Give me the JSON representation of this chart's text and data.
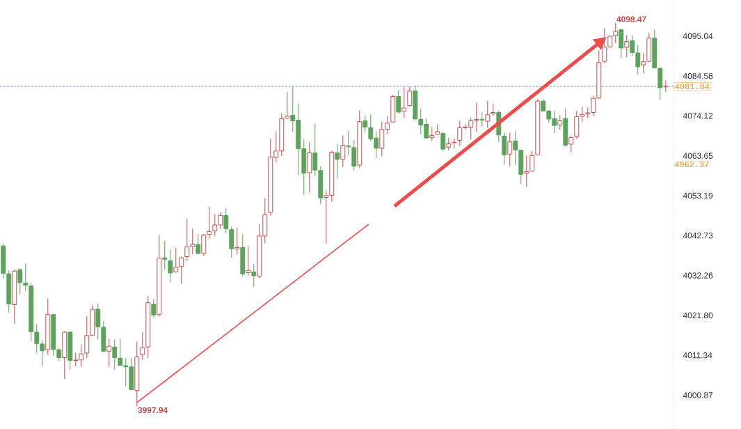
{
  "chart_data": {
    "type": "candlestick",
    "categories": [
      null,
      null,
      null,
      null,
      null,
      null,
      null,
      null,
      null,
      null,
      null,
      null,
      null,
      null,
      null,
      null,
      null,
      null,
      null,
      null,
      null,
      null,
      null,
      null,
      null,
      null,
      null,
      null,
      null,
      null,
      null,
      null,
      null,
      null,
      null,
      null,
      null,
      null,
      null,
      null,
      null,
      null,
      null,
      null,
      null,
      null,
      null,
      null,
      null,
      null,
      null,
      null,
      null,
      null,
      null,
      null,
      null,
      null,
      null,
      null,
      null,
      null,
      null,
      null,
      null,
      null,
      null,
      null,
      null,
      null,
      null,
      null,
      null,
      null,
      null,
      null,
      null,
      null,
      null,
      null,
      null,
      null,
      null,
      null,
      null,
      null,
      null,
      null,
      null,
      null,
      null,
      null,
      null,
      null,
      null,
      null,
      null,
      null,
      null,
      null,
      null,
      null,
      null,
      null,
      null,
      null,
      null,
      null,
      null,
      null,
      null,
      null,
      null,
      null,
      null,
      null,
      null,
      null,
      null,
      null
    ],
    "ohlc": [
      [
        4040.0,
        4040.5,
        4031.5,
        4032.8
      ],
      [
        4032.7,
        4033.6,
        4022.5,
        4024.8
      ],
      [
        4024.6,
        4033.9,
        4019.6,
        4033.4
      ],
      [
        4033.8,
        4034.1,
        4027.3,
        4030.4
      ],
      [
        4030.3,
        4035.5,
        4028.2,
        4029.7
      ],
      [
        4029.5,
        4030.4,
        4015.1,
        4017.5
      ],
      [
        4017.4,
        4019.4,
        4011.9,
        4014.4
      ],
      [
        4014.3,
        4015.2,
        4008.4,
        4012.5
      ],
      [
        4012.8,
        4026.2,
        4011.5,
        4022.0
      ],
      [
        4022.0,
        4022.1,
        4011.2,
        4012.9
      ],
      [
        4012.8,
        4013.2,
        4009.8,
        4010.7
      ],
      [
        4010.7,
        4017.7,
        4005.1,
        4017.4
      ],
      [
        4017.4,
        4017.6,
        4007.6,
        4010.0
      ],
      [
        4010.0,
        4012.1,
        4008.4,
        4010.1
      ],
      [
        4010.1,
        4014.1,
        4008.3,
        4011.7
      ],
      [
        4011.9,
        4021.6,
        4010.6,
        4016.5
      ],
      [
        4016.6,
        4024.5,
        4016.5,
        4023.4
      ],
      [
        4023.4,
        4024.9,
        4015.5,
        4018.8
      ],
      [
        4018.7,
        4020.2,
        4012.3,
        4012.4
      ],
      [
        4012.4,
        4015.6,
        4008.3,
        4013.7
      ],
      [
        4013.5,
        4015.5,
        4007.6,
        4010.7
      ],
      [
        4010.6,
        4015.6,
        4008.6,
        4008.7
      ],
      [
        4008.6,
        4010.6,
        4003.2,
        4008.3
      ],
      [
        4008.3,
        4010.6,
        4002.2,
        4002.3
      ],
      [
        4002.1,
        4014.9,
        3997.94,
        4010.9
      ],
      [
        4011.5,
        4017.3,
        4010.0,
        4013.3
      ],
      [
        4013.5,
        4026.8,
        4010.6,
        4025.1
      ],
      [
        4024.7,
        4026.0,
        4021.1,
        4021.9
      ],
      [
        4022.0,
        4042.8,
        4021.5,
        4036.8
      ],
      [
        4036.9,
        4041.4,
        4033.8,
        4036.5
      ],
      [
        4036.1,
        4038.9,
        4030.5,
        4032.9
      ],
      [
        4033.2,
        4039.6,
        4033.0,
        4034.4
      ],
      [
        4034.6,
        4037.2,
        4030.1,
        4036.9
      ],
      [
        4037.2,
        4047.0,
        4036.0,
        4039.8
      ],
      [
        4039.9,
        4044.5,
        4037.8,
        4040.4
      ],
      [
        4040.4,
        4043.1,
        4037.9,
        4038.0
      ],
      [
        4038.0,
        4043.1,
        4037.3,
        4042.9
      ],
      [
        4043.0,
        4050.3,
        4041.8,
        4043.8
      ],
      [
        4044.0,
        4048.4,
        4042.6,
        4045.5
      ],
      [
        4045.5,
        4048.8,
        4044.5,
        4048.0
      ],
      [
        4048.0,
        4050.0,
        4043.4,
        4044.5
      ],
      [
        4044.3,
        4045.0,
        4036.9,
        4039.3
      ],
      [
        4039.2,
        4044.8,
        4037.8,
        4039.6
      ],
      [
        4039.6,
        4043.1,
        4032.0,
        4032.7
      ],
      [
        4033.0,
        4039.8,
        4032.1,
        4033.6
      ],
      [
        4033.2,
        4035.3,
        4029.2,
        4032.2
      ],
      [
        4032.1,
        4045.7,
        4031.5,
        4042.6
      ],
      [
        4042.6,
        4052.5,
        4040.7,
        4048.2
      ],
      [
        4048.8,
        4068.1,
        4048.0,
        4063.3
      ],
      [
        4063.2,
        4070.1,
        4062.0,
        4064.9
      ],
      [
        4064.9,
        4074.8,
        4063.6,
        4073.4
      ],
      [
        4073.5,
        4080.3,
        4073.3,
        4074.0
      ],
      [
        4074.3,
        4081.8,
        4069.9,
        4072.8
      ],
      [
        4073.0,
        4077.4,
        4058.6,
        4065.5
      ],
      [
        4065.5,
        4067.9,
        4053.3,
        4059.1
      ],
      [
        4059.2,
        4067.2,
        4054.0,
        4064.4
      ],
      [
        4064.4,
        4072.1,
        4058.3,
        4059.9
      ],
      [
        4059.8,
        4060.9,
        4051.0,
        4052.6
      ],
      [
        4052.7,
        4054.5,
        4040.7,
        4053.2
      ],
      [
        4053.3,
        4065.0,
        4051.6,
        4064.6
      ],
      [
        4064.4,
        4066.7,
        4057.7,
        4062.7
      ],
      [
        4062.7,
        4069.0,
        4060.7,
        4066.4
      ],
      [
        4066.2,
        4070.2,
        4063.8,
        4066.0
      ],
      [
        4065.8,
        4067.8,
        4059.8,
        4060.9
      ],
      [
        4061.2,
        4075.5,
        4060.4,
        4072.6
      ],
      [
        4072.8,
        4074.1,
        4069.7,
        4071.2
      ],
      [
        4071.0,
        4074.5,
        4067.5,
        4068.1
      ],
      [
        4068.3,
        4070.1,
        4063.1,
        4065.6
      ],
      [
        4065.6,
        4072.6,
        4063.5,
        4070.5
      ],
      [
        4070.6,
        4074.1,
        4069.3,
        4072.2
      ],
      [
        4072.5,
        4079.6,
        4072.3,
        4079.2
      ],
      [
        4079.2,
        4080.8,
        4074.7,
        4075.1
      ],
      [
        4075.3,
        4081.8,
        4073.6,
        4076.2
      ],
      [
        4076.8,
        4081.8,
        4076.5,
        4080.6
      ],
      [
        4080.7,
        4082.0,
        4072.9,
        4073.3
      ],
      [
        4073.2,
        4076.0,
        4069.3,
        4071.7
      ],
      [
        4071.9,
        4073.4,
        4068.2,
        4068.3
      ],
      [
        4068.4,
        4071.2,
        4067.5,
        4069.0
      ],
      [
        4069.3,
        4071.9,
        4069.2,
        4070.0
      ],
      [
        4069.5,
        4069.9,
        4064.9,
        4065.4
      ],
      [
        4065.9,
        4068.3,
        4065.0,
        4066.8
      ],
      [
        4067.1,
        4068.2,
        4065.6,
        4067.2
      ],
      [
        4067.7,
        4072.8,
        4066.2,
        4071.0
      ],
      [
        4071.0,
        4071.9,
        4070.5,
        4071.2
      ],
      [
        4071.1,
        4073.6,
        4067.9,
        4072.8
      ],
      [
        4073.0,
        4077.6,
        4069.9,
        4073.2
      ],
      [
        4073.2,
        4075.1,
        4071.2,
        4073.0
      ],
      [
        4072.7,
        4078.0,
        4071.0,
        4074.4
      ],
      [
        4074.6,
        4077.2,
        4074.2,
        4075.0
      ],
      [
        4075.0,
        4075.5,
        4067.3,
        4069.1
      ],
      [
        4068.8,
        4069.8,
        4061.3,
        4063.9
      ],
      [
        4064.1,
        4069.7,
        4060.9,
        4067.3
      ],
      [
        4067.5,
        4070.1,
        4061.3,
        4065.2
      ],
      [
        4065.1,
        4065.2,
        4056.2,
        4058.8
      ],
      [
        4059.1,
        4063.7,
        4055.5,
        4059.5
      ],
      [
        4059.6,
        4064.9,
        4059.5,
        4063.7
      ],
      [
        4063.9,
        4078.5,
        4063.7,
        4078.0
      ],
      [
        4078.0,
        4078.4,
        4075.2,
        4075.4
      ],
      [
        4075.4,
        4075.6,
        4072.3,
        4073.3
      ],
      [
        4073.4,
        4075.4,
        4069.6,
        4071.6
      ],
      [
        4071.7,
        4074.2,
        4070.5,
        4072.8
      ],
      [
        4073.4,
        4076.0,
        4066.1,
        4066.4
      ],
      [
        4066.7,
        4069.0,
        4064.5,
        4068.4
      ],
      [
        4068.6,
        4075.4,
        4068.1,
        4073.9
      ],
      [
        4074.0,
        4076.6,
        4072.5,
        4074.5
      ],
      [
        4074.6,
        4076.3,
        4073.5,
        4074.9
      ],
      [
        4075.0,
        4079.4,
        4074.2,
        4078.7
      ],
      [
        4078.8,
        4091.3,
        4078.6,
        4088.1
      ],
      [
        4088.4,
        4097.1,
        4087.9,
        4092.2
      ],
      [
        4092.2,
        4095.2,
        4092.0,
        4095.0
      ],
      [
        4095.1,
        4098.47,
        4093.2,
        4096.3
      ],
      [
        4096.7,
        4096.8,
        4089.2,
        4091.9
      ],
      [
        4092.1,
        4095.3,
        4089.5,
        4093.6
      ],
      [
        4093.8,
        4095.2,
        4089.8,
        4090.7
      ],
      [
        4090.6,
        4092.7,
        4084.9,
        4087.0
      ],
      [
        4087.5,
        4090.6,
        4085.3,
        4088.3
      ],
      [
        4088.4,
        4095.9,
        4088.2,
        4094.5
      ],
      [
        4094.5,
        4096.7,
        4086.5,
        4086.7
      ],
      [
        4086.6,
        4086.8,
        4078.2,
        4081.5
      ],
      [
        4081.7,
        4083.5,
        4080.4,
        4081.84
      ]
    ],
    "colors": [
      "#5ba35a",
      "#5ba35a",
      "#d0494a",
      "#5ba35a",
      "#5ba35a",
      "#5ba35a",
      "#5ba35a",
      "#5ba35a",
      "#d0494a",
      "#5ba35a",
      "#5ba35a",
      "#d0494a",
      "#5ba35a",
      "#d0494a",
      "#d0494a",
      "#d0494a",
      "#d0494a",
      "#5ba35a",
      "#5ba35a",
      "#d0494a",
      "#5ba35a",
      "#5ba35a",
      "#5ba35a",
      "#5ba35a",
      "#d0494a",
      "#d0494a",
      "#d0494a",
      "#5ba35a",
      "#d0494a",
      "#5ba35a",
      "#5ba35a",
      "#d0494a",
      "#d0494a",
      "#d0494a",
      "#d0494a",
      "#5ba35a",
      "#d0494a",
      "#d0494a",
      "#d0494a",
      "#d0494a",
      "#5ba35a",
      "#5ba35a",
      "#d0494a",
      "#5ba35a",
      "#d0494a",
      "#5ba35a",
      "#d0494a",
      "#d0494a",
      "#d0494a",
      "#d0494a",
      "#d0494a",
      "#d0494a",
      "#5ba35a",
      "#5ba35a",
      "#5ba35a",
      "#d0494a",
      "#5ba35a",
      "#5ba35a",
      "#d0494a",
      "#d0494a",
      "#5ba35a",
      "#d0494a",
      "#5ba35a",
      "#5ba35a",
      "#d0494a",
      "#5ba35a",
      "#5ba35a",
      "#5ba35a",
      "#d0494a",
      "#d0494a",
      "#d0494a",
      "#5ba35a",
      "#d0494a",
      "#d0494a",
      "#5ba35a",
      "#5ba35a",
      "#5ba35a",
      "#d0494a",
      "#d0494a",
      "#5ba35a",
      "#d0494a",
      "#d0494a",
      "#d0494a",
      "#d0494a",
      "#d0494a",
      "#d0494a",
      "#5ba35a",
      "#d0494a",
      "#d0494a",
      "#5ba35a",
      "#5ba35a",
      "#d0494a",
      "#5ba35a",
      "#5ba35a",
      "#d0494a",
      "#d0494a",
      "#d0494a",
      "#5ba35a",
      "#5ba35a",
      "#5ba35a",
      "#d0494a",
      "#5ba35a",
      "#d0494a",
      "#d0494a",
      "#d0494a",
      "#d0494a",
      "#d0494a",
      "#d0494a",
      "#d0494a",
      "#d0494a",
      "#d0494a",
      "#5ba35a",
      "#d0494a",
      "#5ba35a",
      "#5ba35a",
      "#d0494a",
      "#d0494a",
      "#5ba35a",
      "#5ba35a",
      "#d0494a"
    ],
    "ylim": [
      3992,
      4104.5
    ],
    "yticks": [
      4000.87,
      4011.34,
      {
        "value": 4021.8,
        "label": "4021.80"
      },
      4032.26,
      4042.73,
      4053.19,
      4063.65,
      4074.12,
      4084.58,
      4095.04
    ],
    "tick_labels": "y",
    "ref_lines": [
      {
        "axis": "y",
        "value": 4081.84,
        "label": "4081.84",
        "color": "#3d7cc9",
        "line_style": "dashed"
      }
    ],
    "annotations": [
      "4098.47",
      "3997.94",
      "4062.37"
    ]
  }
}
